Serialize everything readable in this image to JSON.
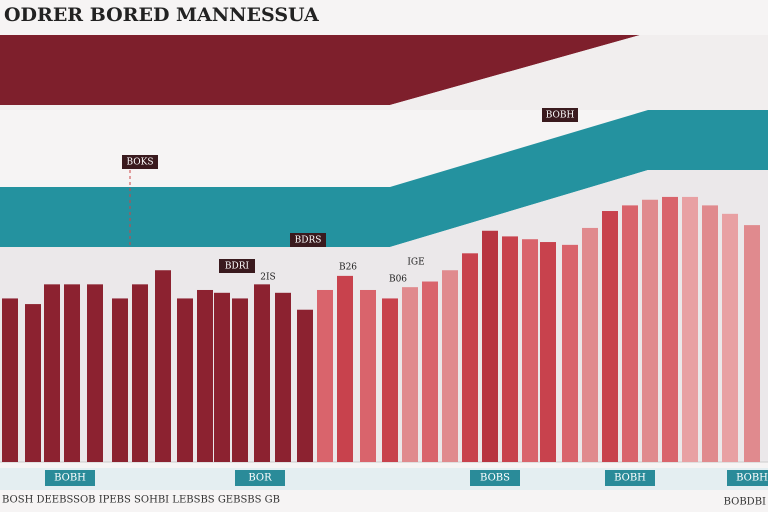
{
  "chart_data": {
    "type": "bar",
    "title": "ODRER BORED MANNESSUA",
    "categories": [
      null,
      null,
      null,
      null,
      null,
      null,
      null,
      null,
      null,
      null,
      null,
      null,
      null,
      null,
      null,
      null,
      null,
      null,
      null,
      null,
      null,
      null,
      null,
      null,
      null,
      null,
      null,
      null,
      null,
      null,
      null,
      null,
      null,
      null,
      null,
      null,
      null
    ],
    "values": [
      58,
      56,
      63,
      63,
      63,
      58,
      63,
      68,
      58,
      61,
      60,
      58,
      63,
      60,
      54,
      61,
      66,
      61,
      58,
      62,
      64,
      68,
      74,
      82,
      80,
      79,
      78,
      77,
      83,
      89,
      91,
      93,
      94,
      94,
      91,
      88,
      84
    ],
    "colors": [
      "#8c2230",
      "#8c2230",
      "#8c2230",
      "#8c2230",
      "#8c2230",
      "#8c2230",
      "#8c2230",
      "#8c2230",
      "#8c2230",
      "#8c2230",
      "#8c2230",
      "#8c2230",
      "#8c2230",
      "#8c2230",
      "#8c2230",
      "#d9646c",
      "#c8424d",
      "#d9646c",
      "#c8424d",
      "#e08a8e",
      "#d9646c",
      "#e08a8e",
      "#c8424d",
      "#b83440",
      "#c8424d",
      "#d9646c",
      "#c8424d",
      "#d9646c",
      "#e08a8e",
      "#c8424d",
      "#d9646c",
      "#e08a8e",
      "#d9646c",
      "#e8a0a3",
      "#e08a8e",
      "#e8a0a3",
      "#e08a8e"
    ],
    "ylim": [
      0,
      100
    ],
    "annotations": [
      "BOKS",
      "BOBH",
      "BDRS",
      "BDRI",
      "2IS",
      "B26",
      "IGE",
      "B06"
    ],
    "band_labels": [
      "BOBH",
      "BOR",
      "BOBS",
      "BOBH",
      "BOBH"
    ],
    "footer": "BOSH DEEBSSOB  IPEBS SOHBI  LEBSBS GEBSBS GB",
    "footer_right": "BOBDBI"
  }
}
